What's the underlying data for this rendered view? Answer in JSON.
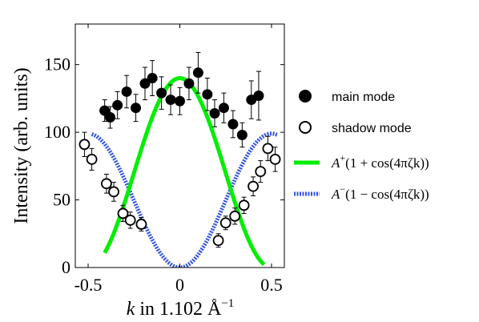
{
  "chart_data": {
    "type": "scatter",
    "xlabel_prefix": "k",
    "xlabel_suffix": " in 1.102 Å",
    "xlabel_sup": "−1",
    "ylabel": "Intensity (arb. units)",
    "xlim": [
      -0.57,
      0.57
    ],
    "ylim": [
      0,
      180
    ],
    "x_ticks": [
      -0.5,
      0,
      0.5
    ],
    "x_tick_labels": [
      "-0.5",
      "0",
      "0.5"
    ],
    "y_ticks": [
      0,
      50,
      100,
      150
    ],
    "y_tick_labels": [
      "0",
      "50",
      "100",
      "150"
    ],
    "grid": false,
    "legend_position": "right",
    "series": [
      {
        "name": "main mode",
        "marker": "filled-circle",
        "color": "#000000",
        "x": [
          -0.41,
          -0.38,
          -0.34,
          -0.29,
          -0.24,
          -0.19,
          -0.15,
          -0.1,
          -0.05,
          0.0,
          0.05,
          0.1,
          0.15,
          0.19,
          0.24,
          0.29,
          0.34,
          0.39,
          0.43
        ],
        "y": [
          116,
          111,
          120,
          130,
          118,
          136,
          140,
          129,
          124,
          123,
          136,
          144,
          128,
          114,
          118,
          106,
          98,
          124,
          127
        ],
        "err": [
          8,
          8,
          10,
          12,
          10,
          12,
          13,
          12,
          11,
          10,
          12,
          15,
          12,
          10,
          11,
          10,
          9,
          14,
          18
        ]
      },
      {
        "name": "shadow mode",
        "marker": "open-circle",
        "color": "#000000",
        "x": [
          -0.52,
          -0.48,
          -0.4,
          -0.36,
          -0.31,
          -0.27,
          -0.21,
          0.21,
          0.25,
          0.3,
          0.35,
          0.4,
          0.44,
          0.48,
          0.52
        ],
        "y": [
          91,
          80,
          62,
          56,
          40,
          35,
          32,
          20,
          33,
          38,
          46,
          60,
          71,
          88,
          80
        ],
        "err": [
          9,
          8,
          7,
          7,
          6,
          6,
          5,
          5,
          5,
          6,
          6,
          7,
          8,
          9,
          9
        ]
      },
      {
        "name": "A+(1+cos(4πζk))",
        "type": "line",
        "color": "#00ee00",
        "amplitude": 70,
        "x_range": [
          -0.41,
          0.46
        ]
      },
      {
        "name": "A−(1−cos(4πζk))",
        "type": "line",
        "color": "#3355dd",
        "style": "dashed",
        "amplitude": 49.5,
        "x_range": [
          -0.48,
          0.53
        ]
      }
    ],
    "legend": {
      "main": "main mode",
      "shadow": "shadow mode",
      "fitplus": {
        "base": "A",
        "sup": "+",
        "rest": "(1 + cos(4πζk))"
      },
      "fitminus": {
        "base": "A",
        "sup": "−",
        "rest": "(1 − cos(4πζk))"
      }
    }
  }
}
